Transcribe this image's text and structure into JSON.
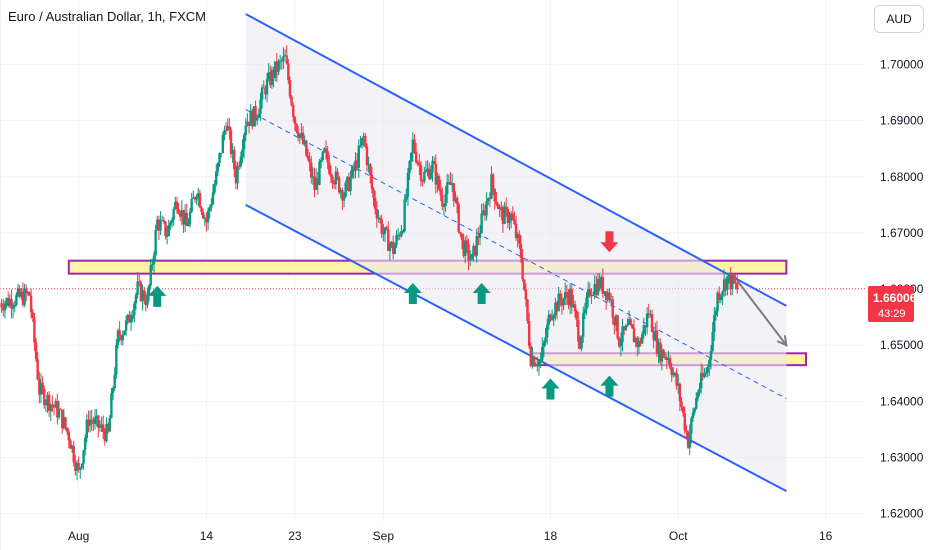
{
  "header": {
    "title": "Euro / Australian Dollar, 1h, FXCM",
    "currency_button": "AUD"
  },
  "price_tag": {
    "value": "1.66006",
    "countdown": "43:29"
  },
  "colors": {
    "up": "#089981",
    "down": "#f23645",
    "channel": "#2962ff",
    "zone_fill": "#fff3a8",
    "zone_border": "#9c27b0",
    "arrow_up": "#089981",
    "arrow_down": "#f23645"
  },
  "chart_data": {
    "type": "candlestick",
    "symbol": "EURAUD",
    "timeframe": "1h",
    "y_axis": {
      "ticks": [
        "1.70000",
        "1.69000",
        "1.68000",
        "1.67000",
        "1.66000",
        "1.65000",
        "1.64000",
        "1.63000",
        "1.62000"
      ],
      "ylim": [
        1.6185,
        1.7115
      ]
    },
    "x_axis": {
      "ticks": [
        "Aug",
        "14",
        "23",
        "Sep",
        "18",
        "Oct",
        "16"
      ],
      "range_days": [
        "2023-07-24",
        "2023-10-20"
      ]
    },
    "grid": true,
    "path": [
      [
        "2023-07-24",
        1.6575
      ],
      [
        "2023-07-26",
        1.6585
      ],
      [
        "2023-07-27",
        1.659
      ],
      [
        "2023-07-28",
        1.642
      ],
      [
        "2023-07-30",
        1.638
      ],
      [
        "2023-07-31",
        1.634
      ],
      [
        "2023-08-01",
        1.627
      ],
      [
        "2023-08-02",
        1.637
      ],
      [
        "2023-08-04",
        1.634
      ],
      [
        "2023-08-05",
        1.6515
      ],
      [
        "2023-08-06",
        1.654
      ],
      [
        "2023-08-07",
        1.66
      ],
      [
        "2023-08-08",
        1.658
      ],
      [
        "2023-08-09",
        1.672
      ],
      [
        "2023-08-10",
        1.67
      ],
      [
        "2023-08-11",
        1.676
      ],
      [
        "2023-08-12",
        1.671
      ],
      [
        "2023-08-13",
        1.678
      ],
      [
        "2023-08-14",
        1.672
      ],
      [
        "2023-08-15",
        1.68
      ],
      [
        "2023-08-16",
        1.69
      ],
      [
        "2023-08-17",
        1.68
      ],
      [
        "2023-08-18",
        1.69
      ],
      [
        "2023-08-19",
        1.691
      ],
      [
        "2023-08-20",
        1.696
      ],
      [
        "2023-08-21",
        1.699
      ],
      [
        "2023-08-22",
        1.701
      ],
      [
        "2023-08-23",
        1.69
      ],
      [
        "2023-08-24",
        1.685
      ],
      [
        "2023-08-25",
        1.678
      ],
      [
        "2023-08-26",
        1.684
      ],
      [
        "2023-08-27",
        1.68
      ],
      [
        "2023-08-28",
        1.677
      ],
      [
        "2023-08-29",
        1.681
      ],
      [
        "2023-08-30",
        1.687
      ],
      [
        "2023-08-31",
        1.676
      ],
      [
        "2023-09-01",
        1.67
      ],
      [
        "2023-09-02",
        1.667
      ],
      [
        "2023-09-03",
        1.672
      ],
      [
        "2023-09-04",
        1.686
      ],
      [
        "2023-09-05",
        1.68
      ],
      [
        "2023-09-06",
        1.682
      ],
      [
        "2023-09-07",
        1.676
      ],
      [
        "2023-09-08",
        1.679
      ],
      [
        "2023-09-09",
        1.668
      ],
      [
        "2023-09-10",
        1.665
      ],
      [
        "2023-09-11",
        1.672
      ],
      [
        "2023-09-12",
        1.679
      ],
      [
        "2023-09-13",
        1.673
      ],
      [
        "2023-09-14",
        1.673
      ],
      [
        "2023-09-15",
        1.666
      ],
      [
        "2023-09-16",
        1.648
      ],
      [
        "2023-09-17",
        1.647
      ],
      [
        "2023-09-18",
        1.656
      ],
      [
        "2023-09-19",
        1.658
      ],
      [
        "2023-09-20",
        1.659
      ],
      [
        "2023-09-21",
        1.651
      ],
      [
        "2023-09-22",
        1.66
      ],
      [
        "2023-09-23",
        1.661
      ],
      [
        "2023-09-24",
        1.659
      ],
      [
        "2023-09-25",
        1.651
      ],
      [
        "2023-09-26",
        1.653
      ],
      [
        "2023-09-27",
        1.65
      ],
      [
        "2023-09-28",
        1.656
      ],
      [
        "2023-09-29",
        1.649
      ],
      [
        "2023-09-30",
        1.648
      ],
      [
        "2023-10-01",
        1.642
      ],
      [
        "2023-10-02",
        1.633
      ],
      [
        "2023-10-03",
        1.642
      ],
      [
        "2023-10-04",
        1.646
      ],
      [
        "2023-10-05",
        1.659
      ],
      [
        "2023-10-06",
        1.662
      ],
      [
        "2023-10-07",
        1.66
      ]
    ],
    "channel": {
      "upper": [
        [
          "2023-08-18",
          1.709
        ],
        [
          "2023-10-12",
          1.657
        ]
      ],
      "lower": [
        [
          "2023-08-18",
          1.675
        ],
        [
          "2023-10-12",
          1.624
        ]
      ],
      "mid": [
        [
          "2023-08-18",
          1.692
        ],
        [
          "2023-10-12",
          1.6405
        ]
      ]
    },
    "zones": [
      {
        "from": "2023-07-31",
        "to": "2023-10-12",
        "y_low": 1.6631,
        "y_high": 1.6647
      },
      {
        "from": "2023-09-16",
        "to": "2023-10-14",
        "y_low": 1.6468,
        "y_high": 1.6482
      }
    ],
    "signals": [
      {
        "date": "2023-08-09",
        "price": 1.662,
        "direction": "up"
      },
      {
        "date": "2023-09-04",
        "price": 1.6625,
        "direction": "up"
      },
      {
        "date": "2023-09-11",
        "price": 1.6625,
        "direction": "up"
      },
      {
        "date": "2023-09-18",
        "price": 1.6455,
        "direction": "up"
      },
      {
        "date": "2023-09-24",
        "price": 1.646,
        "direction": "up"
      },
      {
        "date": "2023-09-24",
        "price": 1.6655,
        "direction": "down"
      }
    ],
    "projection": [
      [
        "2023-10-07",
        1.6615
      ],
      [
        "2023-10-12",
        1.65
      ]
    ],
    "current_price": 1.66006
  }
}
